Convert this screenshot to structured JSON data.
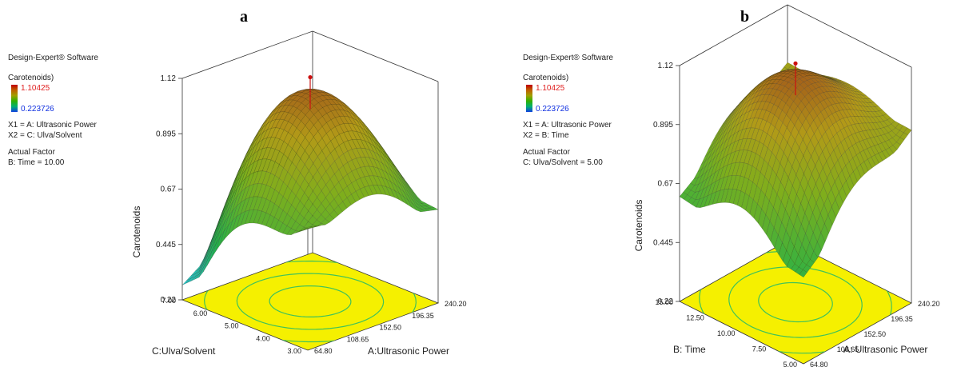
{
  "panels": [
    {
      "letter": "a",
      "software": "Design-Expert® Software",
      "response": "Carotenoids)",
      "legend_max": "1.10425",
      "legend_min": "0.223726",
      "x1": "X1 = A: Ultrasonic Power",
      "x2": "X2 = C: Ulva/Solvent",
      "actual_factor_title": "Actual Factor",
      "actual_factor_value": "B: Time = 10.00"
    },
    {
      "letter": "b",
      "software": "Design-Expert® Software",
      "response": "Carotenoids)",
      "legend_max": "1.10425",
      "legend_min": "0.223726",
      "x1": "X1 = A: Ultrasonic Power",
      "x2": "X2 = B: Time",
      "actual_factor_title": "Actual Factor",
      "actual_factor_value": "C: Ulva/Solvent = 5.00"
    }
  ],
  "colors": {
    "floor": "#f5f000",
    "contour": "#3fc25a",
    "mesh_line": "#1a1a1a",
    "low": "#20b0d8",
    "high": "#b0641a",
    "design_point": "#cc1010"
  },
  "chart_data": [
    {
      "type": "surface",
      "zlabel": "Carotenoids",
      "xlabel": "A:Ultrasonic Power",
      "ylabel": "C:Ulva/Solvent",
      "x_ticks": [
        "64.80",
        "108.65",
        "152.50",
        "196.35",
        "240.20"
      ],
      "y_ticks": [
        "3.00",
        "4.00",
        "5.00",
        "6.00",
        "7.00"
      ],
      "z_ticks": [
        "0.22",
        "0.445",
        "0.67",
        "0.895",
        "1.12"
      ],
      "xlim": [
        64.8,
        240.2
      ],
      "ylim": [
        3.0,
        7.0
      ],
      "zlim": [
        0.22,
        1.12
      ],
      "surface_corner_values": {
        "x_low_y_low": 0.72,
        "x_high_y_low": 0.6,
        "x_high_y_high": 0.66,
        "x_low_y_high": 0.28
      },
      "peak": {
        "x": 152.5,
        "y": 5.0,
        "z": 1.1
      },
      "design_point": {
        "x": 152.5,
        "y": 5.0,
        "z": 1.10425
      }
    },
    {
      "type": "surface",
      "zlabel": "Carotenoids",
      "xlabel": "A: Ultrasonic Power",
      "ylabel": "B: Time",
      "x_ticks": [
        "64.80",
        "108.65",
        "152.50",
        "196.35",
        "240.20"
      ],
      "y_ticks": [
        "5.00",
        "7.50",
        "10.00",
        "12.50",
        "15.00"
      ],
      "z_ticks": [
        "0.22",
        "0.445",
        "0.67",
        "0.895",
        "1.12"
      ],
      "xlim": [
        64.8,
        240.2
      ],
      "ylim": [
        5.0,
        15.0
      ],
      "zlim": [
        0.22,
        1.12
      ],
      "surface_corner_values": {
        "x_low_y_low": 0.55,
        "x_high_y_low": 0.88,
        "x_high_y_high": 0.9,
        "x_low_y_high": 0.62
      },
      "peak": {
        "x": 152.5,
        "y": 10.0,
        "z": 1.1
      },
      "design_point": {
        "x": 152.5,
        "y": 10.0,
        "z": 1.10425
      }
    }
  ]
}
